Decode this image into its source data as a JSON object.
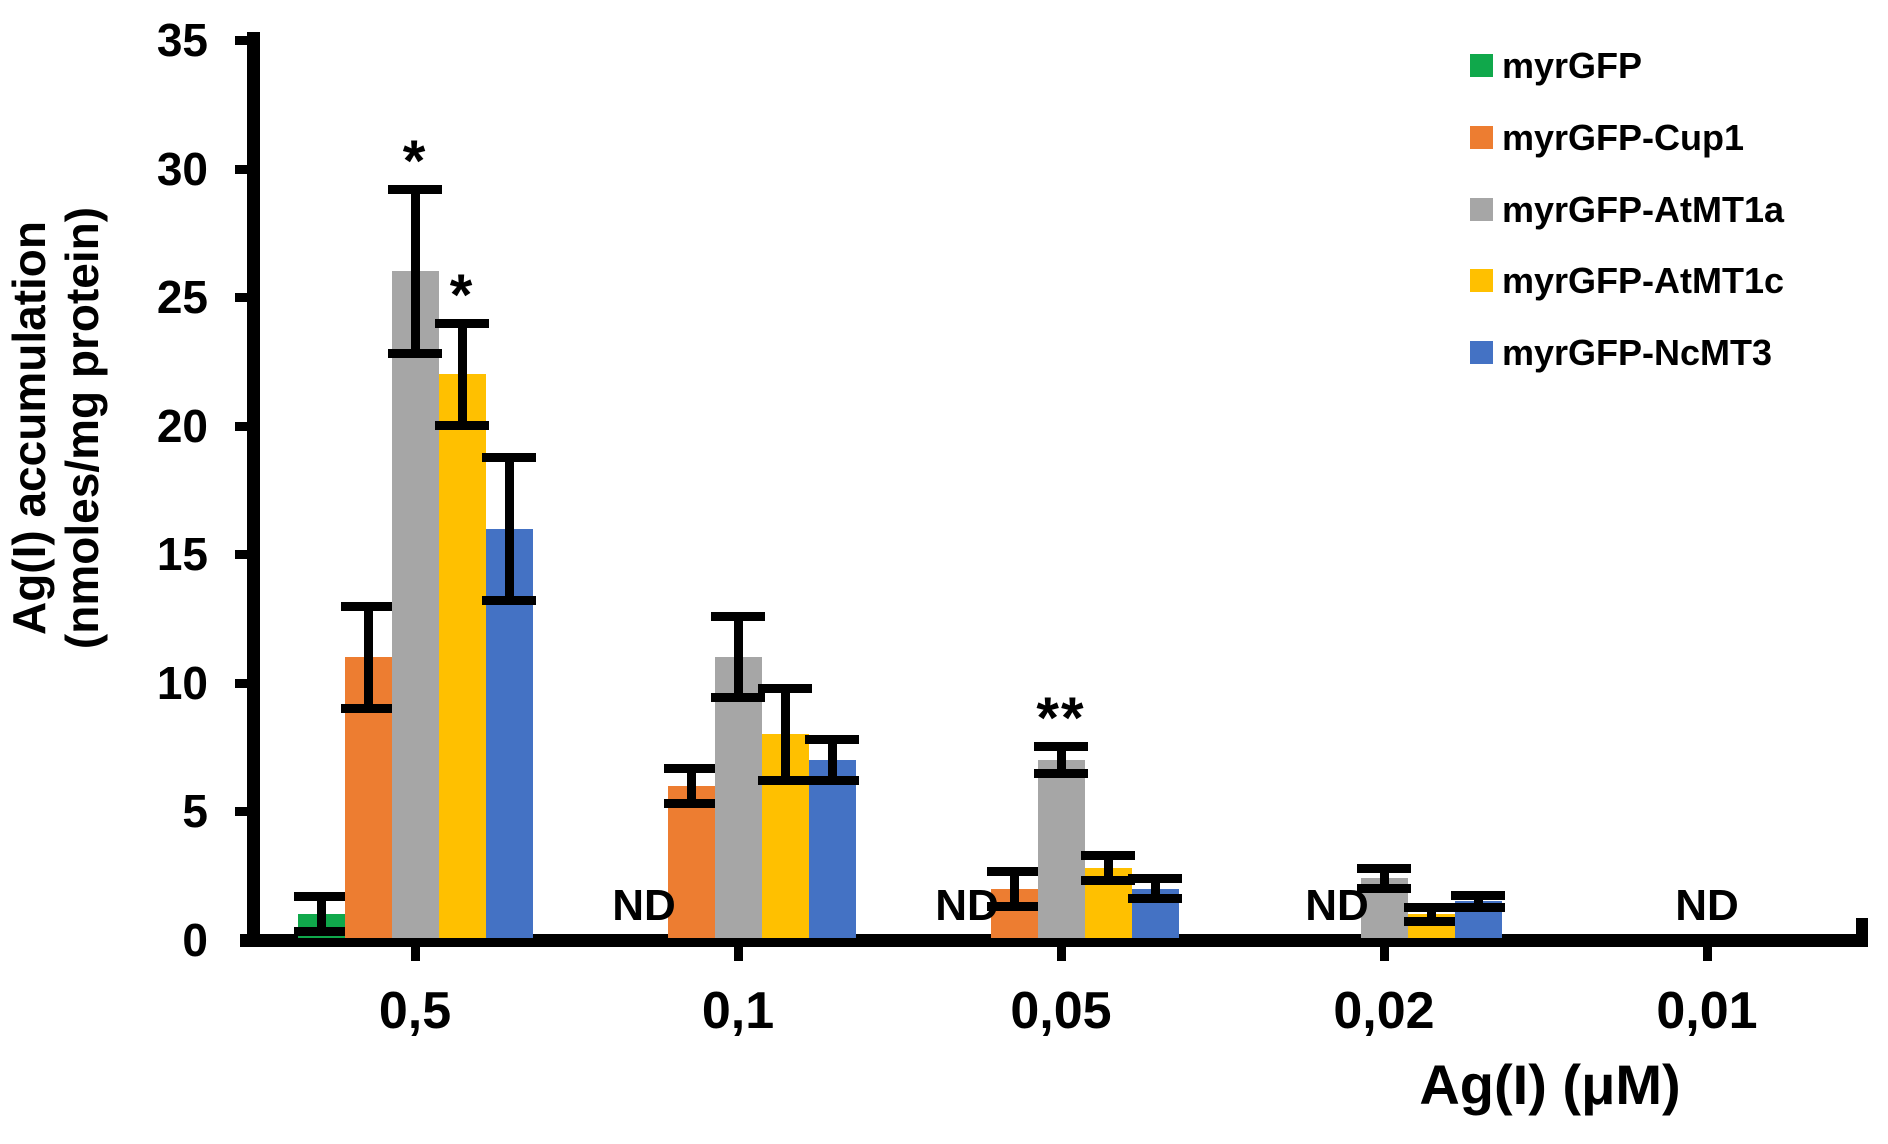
{
  "chart_data": {
    "type": "bar",
    "title": "",
    "xlabel": "Ag(I) (μM)",
    "ylabel_lines": [
      "Ag(I) accumulation",
      "(nmoles/mg protein)"
    ],
    "ylim": [
      0,
      35
    ],
    "yticks": [
      0,
      5,
      10,
      15,
      20,
      25,
      30,
      35
    ],
    "grid": false,
    "legend_position": "top-right",
    "nd_text": "ND",
    "categories": [
      "0,5",
      "0,1",
      "0,05",
      "0,02",
      "0,01"
    ],
    "series": [
      {
        "name": "myrGFP",
        "color": "#10A84B",
        "values": [
          1,
          null,
          null,
          null,
          null
        ],
        "errors": [
          0.7,
          null,
          null,
          null,
          null
        ],
        "annotations": [
          null,
          null,
          null,
          null,
          null
        ]
      },
      {
        "name": "myrGFP-Cup1",
        "color": "#ED7D31",
        "values": [
          11,
          6,
          2,
          null,
          null
        ],
        "errors": [
          2,
          0.7,
          0.7,
          null,
          null
        ],
        "annotations": [
          null,
          null,
          null,
          null,
          null
        ]
      },
      {
        "name": "myrGFP-AtMT1a",
        "color": "#A6A6A6",
        "values": [
          26,
          11,
          7,
          2.4,
          null
        ],
        "errors": [
          3.2,
          1.6,
          0.55,
          0.4,
          null
        ],
        "annotations": [
          "*",
          null,
          "**",
          null,
          null
        ]
      },
      {
        "name": "myrGFP-AtMT1c",
        "color": "#FFC000",
        "values": [
          22,
          8,
          2.8,
          1,
          null
        ],
        "errors": [
          2,
          1.8,
          0.5,
          0.3,
          null
        ],
        "annotations": [
          "*",
          null,
          null,
          null,
          null
        ]
      },
      {
        "name": "myrGFP-NcMT3",
        "color": "#4472C4",
        "values": [
          16,
          7,
          2,
          1.5,
          null
        ],
        "errors": [
          2.8,
          0.8,
          0.4,
          0.25,
          null
        ],
        "annotations": [
          null,
          null,
          null,
          null,
          null
        ]
      }
    ],
    "nd_labels": [
      {
        "category_index": 1,
        "slot": 0
      },
      {
        "category_index": 2,
        "slot": 0
      },
      {
        "category_index": 3,
        "slot": 1
      },
      {
        "category_index": 4,
        "slot": 2
      }
    ]
  }
}
